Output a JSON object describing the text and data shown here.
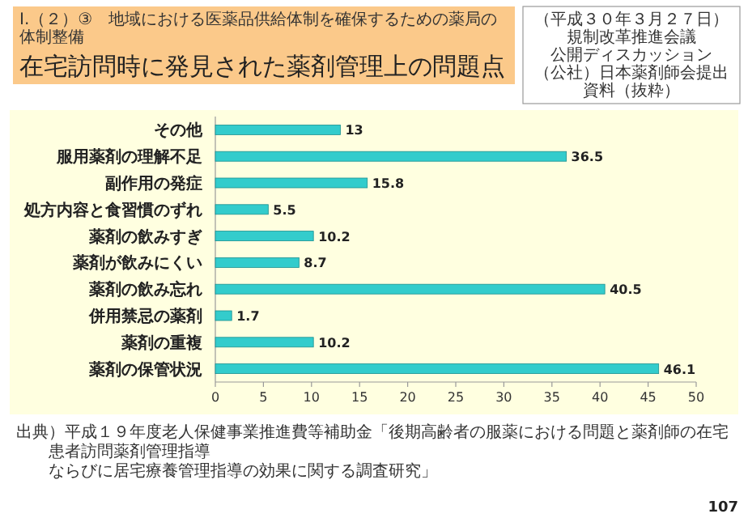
{
  "chart_data": {
    "type": "bar",
    "orientation": "horizontal",
    "subtitle": "Ⅰ.（２）③　地域における医薬品供給体制を確保するための薬局の体制整備",
    "title": "在宅訪問時に発見された薬剤管理上の問題点",
    "categories": [
      "その他",
      "服用薬剤の理解不足",
      "副作用の発症",
      "処方内容と食習慣のずれ",
      "薬剤の飲みすぎ",
      "薬剤が飲みにくい",
      "薬剤の飲み忘れ",
      "併用禁忌の薬剤",
      "薬剤の重複",
      "薬剤の保管状況"
    ],
    "values": [
      13,
      36.5,
      15.8,
      5.5,
      10.2,
      8.7,
      40.5,
      1.7,
      10.2,
      46.1
    ],
    "color": "#33cccc",
    "data_labels": true,
    "xlim": [
      0,
      50
    ],
    "xticks": [
      0,
      5,
      10,
      15,
      20,
      25,
      30,
      35,
      40,
      45,
      50
    ],
    "grid": false,
    "annotations": [
      "（平成３０年３月２７日）",
      "規制改革推進会議",
      "公開ディスカッション",
      "（公社）日本薬剤師会提出資料（抜粋）",
      "出典）平成１９年度老人保健事業推進費等補助金「後期高齢者の服薬における問題と薬剤師の在宅患者訪問薬剤管理指導",
      "ならびに居宅療養管理指導の効果に関する調査研究」",
      "107"
    ]
  }
}
